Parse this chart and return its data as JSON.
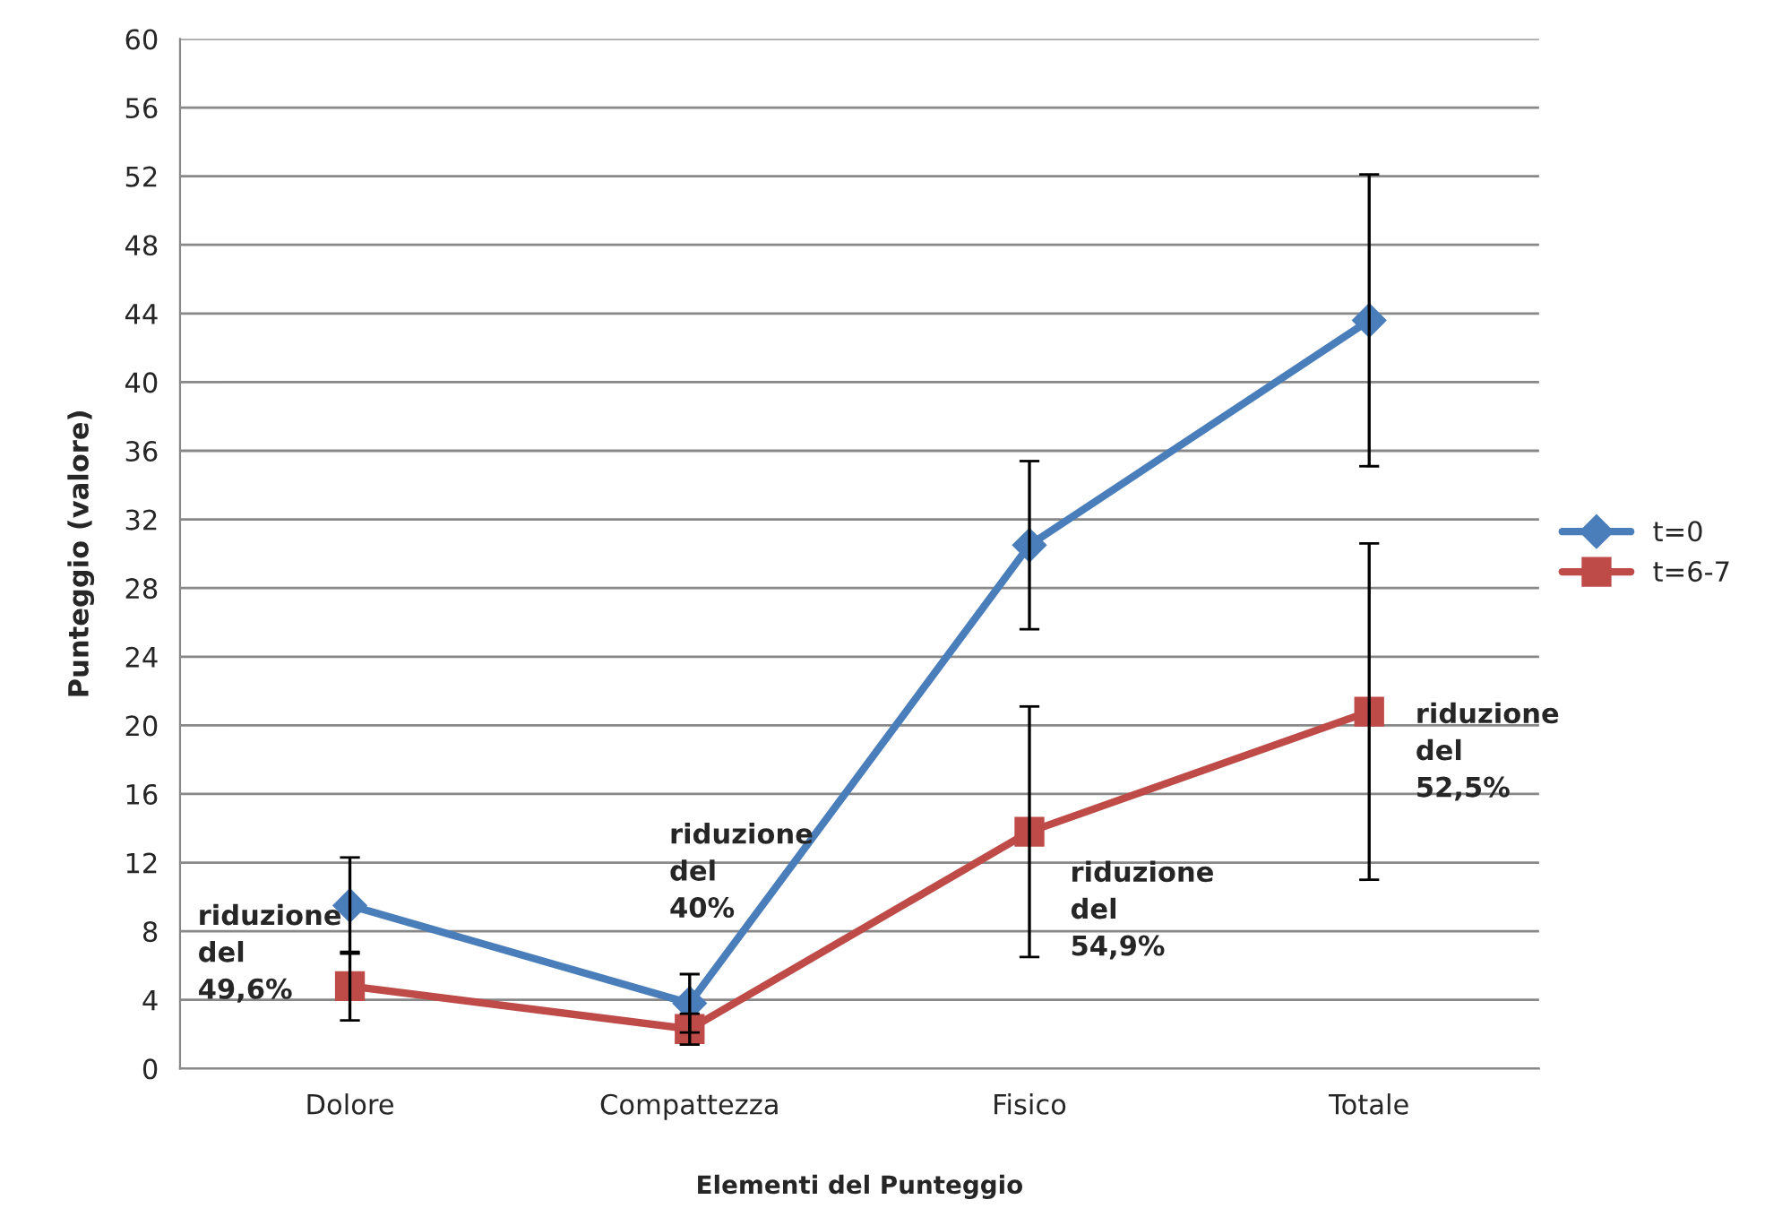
{
  "chart_data": {
    "type": "line",
    "xlabel": "Elementi del Punteggio",
    "ylabel": "Punteggio (valore)",
    "categories": [
      "Dolore",
      "Compattezza",
      "Fisico",
      "Totale"
    ],
    "series": [
      {
        "name": "t=0",
        "color": "#4a7ebb",
        "marker": "diamond",
        "values": [
          9.5,
          3.8,
          30.5,
          43.6
        ],
        "errors": [
          2.8,
          1.7,
          4.9,
          8.5
        ]
      },
      {
        "name": "t=6-7",
        "color": "#be4b48",
        "marker": "square",
        "values": [
          4.8,
          2.3,
          13.8,
          20.8
        ],
        "errors": [
          2.0,
          0.9,
          7.3,
          9.8
        ]
      }
    ],
    "ylim": [
      0,
      60
    ],
    "yticks": [
      0,
      4,
      8,
      12,
      16,
      20,
      24,
      28,
      32,
      36,
      40,
      44,
      48,
      52,
      56,
      60
    ],
    "grid": "y",
    "legend": "right",
    "line_style": "solid",
    "annotations": [
      "riduzione\ndel\n49,6%",
      "riduzione\ndel\n40%",
      "riduzione\ndel\n54,9%",
      "riduzione\ndel\n52,5%"
    ]
  }
}
